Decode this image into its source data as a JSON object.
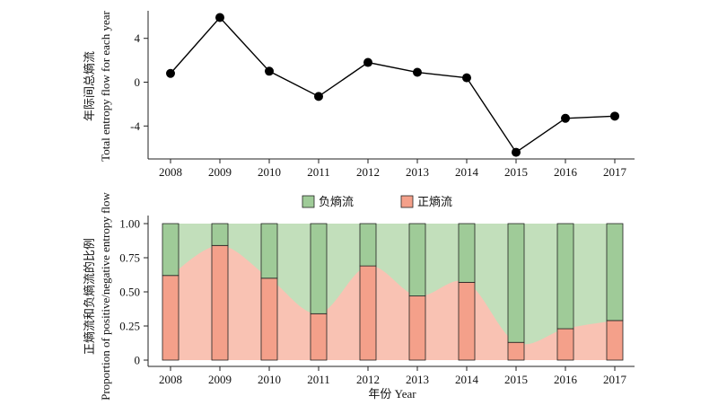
{
  "chart_data": [
    {
      "type": "line",
      "ylabel_lines": [
        "年际间总熵流",
        "Total entropy flow for each year"
      ],
      "x": [
        "2008",
        "2009",
        "2010",
        "2011",
        "2012",
        "2013",
        "2014",
        "2015",
        "2016",
        "2017"
      ],
      "values": [
        0.8,
        5.9,
        1.0,
        -1.3,
        1.8,
        0.9,
        0.4,
        -6.4,
        -3.3,
        -3.1
      ],
      "ylim": [
        -7,
        7.5
      ],
      "yticks": [
        "4",
        "0",
        "-4"
      ],
      "ytick_values": [
        4,
        0,
        -4
      ],
      "grid": false,
      "colors": {
        "line": "#000000",
        "marker": "#000000"
      }
    },
    {
      "type": "bar",
      "stacked": true,
      "xlabel": "年份 Year",
      "ylabel_lines": [
        "正熵流和负熵流的比例",
        "Proportion of positive/negative entropy flow"
      ],
      "categories": [
        "2008",
        "2009",
        "2010",
        "2011",
        "2012",
        "2013",
        "2014",
        "2015",
        "2016",
        "2017"
      ],
      "series": [
        {
          "name": "正熵流",
          "values": [
            0.62,
            0.84,
            0.6,
            0.34,
            0.69,
            0.47,
            0.57,
            0.13,
            0.23,
            0.29
          ]
        },
        {
          "name": "负熵流",
          "values": [
            0.38,
            0.16,
            0.4,
            0.66,
            0.31,
            0.53,
            0.43,
            0.87,
            0.77,
            0.71
          ]
        }
      ],
      "ylim": [
        0,
        1
      ],
      "yticks": [
        "0",
        "0.25",
        "0.50",
        "0.75",
        "1.00"
      ],
      "ytick_values": [
        0,
        0.25,
        0.5,
        0.75,
        1.0
      ],
      "legend": "top-center",
      "grid": false,
      "colors": {
        "positive_bar": "#f4a08a",
        "negative_bar": "#9fcb98",
        "positive_area": "#f9c2b3",
        "negative_area": "#c2dfbb"
      }
    }
  ]
}
